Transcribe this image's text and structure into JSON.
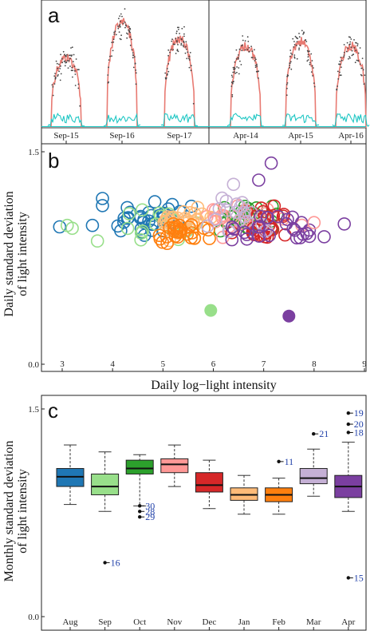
{
  "chart_data": [
    {
      "panel": "a",
      "type": "line",
      "groups": [
        {
          "days": [
            "Sep-15",
            "Sep-16",
            "Sep-17"
          ]
        },
        {
          "days": [
            "Apr-14",
            "Apr-15",
            "Apr-16"
          ]
        }
      ],
      "series": [
        {
          "color": "#e87a72",
          "role": "smoothed light intensity"
        },
        {
          "color": "#1fc7c4",
          "role": "standard deviation"
        },
        {
          "color": "#444444",
          "role": "raw points"
        }
      ],
      "day_peaks": [
        0.62,
        0.93,
        0.78,
        0.72,
        0.76,
        0.72
      ],
      "grid": false
    },
    {
      "panel": "b",
      "type": "scatter",
      "xlabel": "Daily log−light intensity",
      "ylabel": "Daily standard  deviation\nof light intensity",
      "xlim": [
        2.7,
        9.2
      ],
      "ylim": [
        0.0,
        1.5
      ],
      "xticks": [
        "3",
        "4",
        "5",
        "6",
        "7",
        "8",
        "9"
      ],
      "yticks": [
        "0.0",
        "1.5"
      ],
      "groups": [
        {
          "color": "#1f77b4",
          "center": [
            4.6,
            1.02
          ],
          "spread": [
            0.65,
            0.1
          ],
          "n": 34
        },
        {
          "color": "#98df8a",
          "center": [
            4.9,
            0.97
          ],
          "spread": [
            0.7,
            0.1
          ],
          "n": 16
        },
        {
          "color": "#2ca02c",
          "center": [
            6.6,
            1.02
          ],
          "spread": [
            0.6,
            0.1
          ],
          "n": 28
        },
        {
          "color": "#ff9896",
          "center": [
            6.7,
            1.01
          ],
          "spread": [
            0.7,
            0.1
          ],
          "n": 26
        },
        {
          "color": "#d62728",
          "center": [
            7.0,
            1.0
          ],
          "spread": [
            0.45,
            0.1
          ],
          "n": 26
        },
        {
          "color": "#ffbb78",
          "center": [
            5.4,
            1.0
          ],
          "spread": [
            0.45,
            0.09
          ],
          "n": 28
        },
        {
          "color": "#ff7f0e",
          "center": [
            5.3,
            0.93
          ],
          "spread": [
            0.45,
            0.07
          ],
          "n": 28
        },
        {
          "color": "#c5b0d5",
          "center": [
            6.6,
            1.06
          ],
          "spread": [
            0.6,
            0.12
          ],
          "n": 20
        },
        {
          "color": "#7b3fa0",
          "center": [
            7.2,
            0.96
          ],
          "spread": [
            0.55,
            0.1
          ],
          "n": 26
        }
      ],
      "extra_points": [
        {
          "x": 2.95,
          "y": 0.97,
          "color": "#1f77b4"
        },
        {
          "x": 3.6,
          "y": 0.98,
          "color": "#1f77b4"
        },
        {
          "x": 3.8,
          "y": 1.17,
          "color": "#1f77b4"
        },
        {
          "x": 3.8,
          "y": 1.12,
          "color": "#1f77b4"
        },
        {
          "x": 3.1,
          "y": 0.98,
          "color": "#98df8a"
        },
        {
          "x": 3.2,
          "y": 0.96,
          "color": "#98df8a"
        },
        {
          "x": 3.7,
          "y": 0.87,
          "color": "#98df8a"
        },
        {
          "x": 7.15,
          "y": 1.42,
          "color": "#7b3fa0"
        },
        {
          "x": 6.9,
          "y": 1.3,
          "color": "#7b3fa0"
        },
        {
          "x": 8.6,
          "y": 0.99,
          "color": "#7b3fa0"
        },
        {
          "x": 8.2,
          "y": 0.9,
          "color": "#7b3fa0"
        },
        {
          "x": 6.4,
          "y": 1.27,
          "color": "#c5b0d5"
        },
        {
          "x": 8.0,
          "y": 1.0,
          "color": "#ff9896"
        }
      ],
      "filled_points": [
        {
          "x": 5.95,
          "y": 0.38,
          "color": "#98df8a"
        },
        {
          "x": 7.5,
          "y": 0.34,
          "color": "#7b3fa0"
        }
      ]
    },
    {
      "panel": "c",
      "type": "box",
      "xlabel": "",
      "ylabel": "Monthly standard  deviation\nof light intensity",
      "ylim": [
        0.0,
        1.5
      ],
      "yticks": [
        "0.0",
        "1.5"
      ],
      "categories": [
        "Aug",
        "Sep",
        "Oct",
        "Nov",
        "Dec",
        "Jan",
        "Feb",
        "Mar",
        "Apr"
      ],
      "colors": [
        "#1f77b4",
        "#98df8a",
        "#2ca02c",
        "#ff9896",
        "#d62728",
        "#ffbb78",
        "#ff7f0e",
        "#c5b0d5",
        "#7b3fa0"
      ],
      "boxes": [
        {
          "month": "Aug",
          "whisker_low": 0.81,
          "q1": 0.94,
          "median": 1.01,
          "q3": 1.07,
          "whisker_high": 1.24
        },
        {
          "month": "Sep",
          "whisker_low": 0.76,
          "q1": 0.88,
          "median": 0.94,
          "q3": 1.03,
          "whisker_high": 1.19
        },
        {
          "month": "Oct",
          "whisker_low": 0.8,
          "q1": 1.03,
          "median": 1.07,
          "q3": 1.13,
          "whisker_high": 1.17
        },
        {
          "month": "Nov",
          "whisker_low": 0.94,
          "q1": 1.04,
          "median": 1.1,
          "q3": 1.14,
          "whisker_high": 1.24
        },
        {
          "month": "Dec",
          "whisker_low": 0.78,
          "q1": 0.9,
          "median": 0.95,
          "q3": 1.04,
          "whisker_high": 1.13
        },
        {
          "month": "Jan",
          "whisker_low": 0.74,
          "q1": 0.84,
          "median": 0.88,
          "q3": 0.93,
          "whisker_high": 1.02
        },
        {
          "month": "Feb",
          "whisker_low": 0.74,
          "q1": 0.83,
          "median": 0.88,
          "q3": 0.93,
          "whisker_high": 1.0
        },
        {
          "month": "Mar",
          "whisker_low": 0.87,
          "q1": 0.96,
          "median": 1.0,
          "q3": 1.07,
          "whisker_high": 1.21
        },
        {
          "month": "Apr",
          "whisker_low": 0.76,
          "q1": 0.86,
          "median": 0.94,
          "q3": 1.02,
          "whisker_high": 1.26
        }
      ],
      "outliers": [
        {
          "month": "Sep",
          "value": 0.39,
          "label": "16"
        },
        {
          "month": "Oct",
          "value": 0.8,
          "label": "30"
        },
        {
          "month": "Oct",
          "value": 0.76,
          "label": "28"
        },
        {
          "month": "Oct",
          "value": 0.72,
          "label": "29"
        },
        {
          "month": "Feb",
          "value": 1.12,
          "label": "11"
        },
        {
          "month": "Mar",
          "value": 1.32,
          "label": "21"
        },
        {
          "month": "Apr",
          "value": 1.47,
          "label": "19"
        },
        {
          "month": "Apr",
          "value": 1.39,
          "label": "20"
        },
        {
          "month": "Apr",
          "value": 1.33,
          "label": "18"
        },
        {
          "month": "Apr",
          "value": 0.28,
          "label": "15"
        }
      ]
    }
  ]
}
